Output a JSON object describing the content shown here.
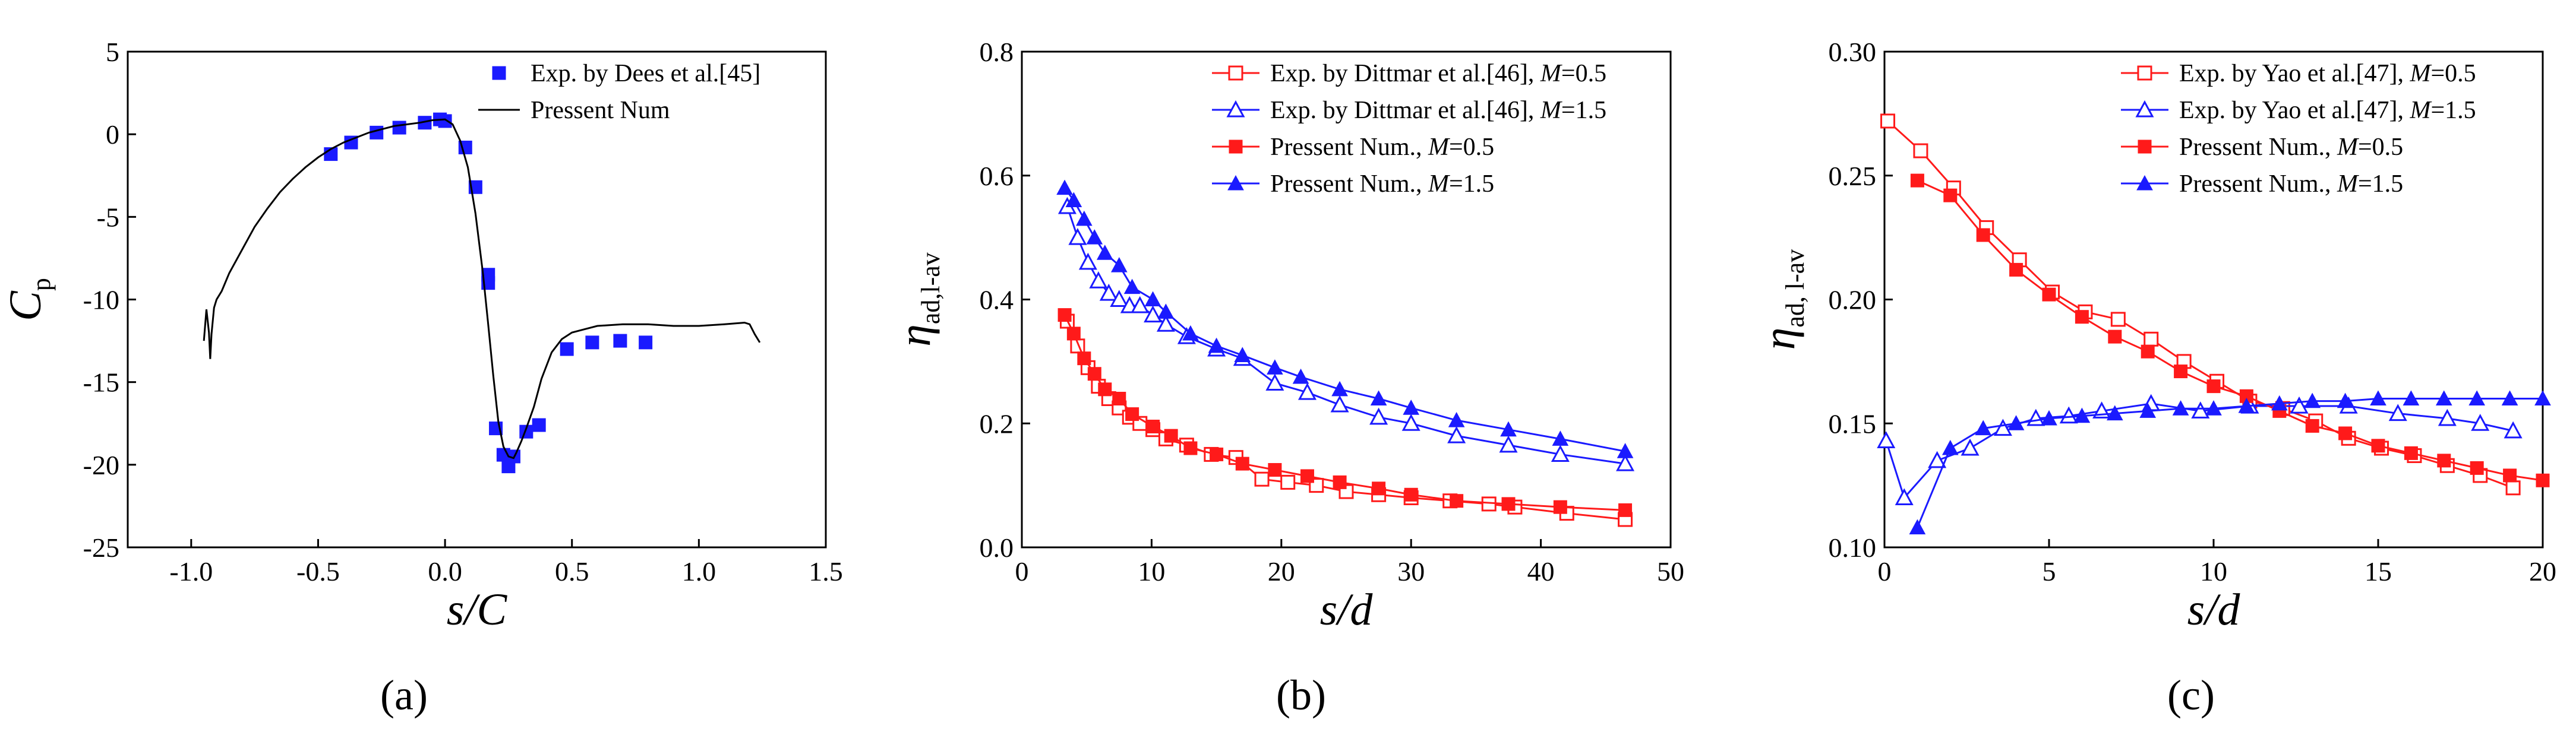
{
  "colors": {
    "blue": "#1a1aff",
    "red": "#ff1a1a",
    "black": "#000000"
  },
  "chart_data": [
    {
      "type": "scatter",
      "panel_label": "(a)",
      "xlabel": "s/C",
      "ylabel": "C_p",
      "ylabel_main": "C",
      "ylabel_sub": "p",
      "xlim": [
        -1.25,
        1.5
      ],
      "ylim": [
        -25,
        5
      ],
      "xticks": [
        -1.0,
        -0.5,
        0.0,
        0.5,
        1.0,
        1.5
      ],
      "xtick_labels": [
        "-1.0",
        "-0.5",
        "0.0",
        "0.5",
        "1.0",
        "1.5"
      ],
      "yticks": [
        5,
        0,
        -5,
        -10,
        -15,
        -20,
        -25
      ],
      "ytick_labels": [
        "5",
        "0",
        "-5",
        "-10",
        "-15",
        "-20",
        "-25"
      ],
      "legend_position": "top-right",
      "series": [
        {
          "name": "Exp. by Dees et al.[45]",
          "kind": "marker",
          "marker": "square-filled",
          "color": "#1a1aff",
          "x": [
            -0.45,
            -0.37,
            -0.27,
            -0.18,
            -0.08,
            -0.02,
            0.0,
            0.08,
            0.12,
            0.17,
            0.17,
            0.2,
            0.23,
            0.25,
            0.27,
            0.32,
            0.37,
            0.48,
            0.58,
            0.69,
            0.79
          ],
          "y": [
            -1.2,
            -0.5,
            0.1,
            0.4,
            0.7,
            0.9,
            0.8,
            -0.8,
            -3.2,
            -8.5,
            -9.0,
            -17.8,
            -19.4,
            -20.1,
            -19.5,
            -18.0,
            -17.6,
            -13.0,
            -12.6,
            -12.5,
            -12.6
          ]
        },
        {
          "name": "Pressent Num",
          "kind": "line",
          "color": "#000000",
          "x": [
            -0.95,
            -0.94,
            -0.93,
            -0.925,
            -0.92,
            -0.91,
            -0.9,
            -0.88,
            -0.85,
            -0.8,
            -0.75,
            -0.7,
            -0.65,
            -0.6,
            -0.55,
            -0.5,
            -0.45,
            -0.4,
            -0.35,
            -0.3,
            -0.25,
            -0.2,
            -0.15,
            -0.1,
            -0.05,
            0.0,
            0.03,
            0.06,
            0.09,
            0.12,
            0.15,
            0.17,
            0.19,
            0.21,
            0.23,
            0.25,
            0.27,
            0.28,
            0.3,
            0.32,
            0.35,
            0.38,
            0.42,
            0.46,
            0.5,
            0.55,
            0.6,
            0.7,
            0.8,
            0.9,
            1.0,
            1.1,
            1.18,
            1.2,
            1.22,
            1.24
          ],
          "y": [
            -12.5,
            -10.6,
            -12.0,
            -13.6,
            -12.1,
            -10.5,
            -10.0,
            -9.5,
            -8.4,
            -7.0,
            -5.6,
            -4.5,
            -3.5,
            -2.7,
            -2.0,
            -1.4,
            -0.9,
            -0.5,
            -0.2,
            0.1,
            0.3,
            0.5,
            0.6,
            0.7,
            0.85,
            0.9,
            0.6,
            -0.4,
            -2.0,
            -4.8,
            -8.5,
            -11.5,
            -14.6,
            -17.4,
            -18.9,
            -19.5,
            -19.6,
            -19.3,
            -18.6,
            -17.8,
            -16.5,
            -14.8,
            -13.2,
            -12.4,
            -12.0,
            -11.8,
            -11.6,
            -11.5,
            -11.5,
            -11.6,
            -11.6,
            -11.5,
            -11.4,
            -11.5,
            -12.1,
            -12.6
          ]
        }
      ]
    },
    {
      "type": "line",
      "panel_label": "(b)",
      "xlabel": "s/d",
      "ylabel": "η_ad,l-av",
      "ylabel_main": "η",
      "ylabel_sub": "ad,l-av",
      "xlim": [
        0,
        50
      ],
      "ylim": [
        0.0,
        0.8
      ],
      "xticks": [
        0,
        10,
        20,
        30,
        40,
        50
      ],
      "xtick_labels": [
        "0",
        "10",
        "20",
        "30",
        "40",
        "50"
      ],
      "yticks": [
        0.0,
        0.2,
        0.4,
        0.6,
        0.8
      ],
      "ytick_labels": [
        "0.0",
        "0.2",
        "0.4",
        "0.6",
        "0.8"
      ],
      "legend_position": "top-right",
      "series": [
        {
          "name": "Exp. by Dittmar et al.[46], M=0.5",
          "legend_prefix": "Exp. by Dittmar et al.[46], ",
          "legend_var": "M",
          "legend_suffix": "=0.5",
          "marker": "square-open",
          "color": "#ff1a1a",
          "x": [
            3.5,
            4.3,
            5.1,
            5.9,
            6.7,
            7.5,
            8.3,
            9.1,
            10.1,
            11.1,
            12.7,
            14.6,
            16.5,
            18.5,
            20.5,
            22.7,
            25.0,
            27.5,
            30.0,
            33.0,
            36.0,
            38.0,
            42.0,
            46.5
          ],
          "y": [
            0.365,
            0.325,
            0.29,
            0.26,
            0.24,
            0.225,
            0.21,
            0.2,
            0.19,
            0.175,
            0.165,
            0.15,
            0.145,
            0.11,
            0.105,
            0.1,
            0.09,
            0.085,
            0.08,
            0.075,
            0.07,
            0.065,
            0.055,
            0.045
          ]
        },
        {
          "name": "Exp. by Dittmar et al.[46], M=1.5",
          "legend_prefix": "Exp. by Dittmar et al.[46], ",
          "legend_var": "M",
          "legend_suffix": "=1.5",
          "marker": "triangle-open",
          "color": "#1a1aff",
          "x": [
            3.5,
            4.3,
            5.1,
            5.9,
            6.7,
            7.5,
            8.3,
            9.1,
            10.1,
            11.1,
            12.7,
            15.0,
            17.0,
            19.5,
            22.0,
            24.5,
            27.5,
            30.0,
            33.5,
            37.5,
            41.5,
            46.5
          ],
          "y": [
            0.55,
            0.5,
            0.46,
            0.43,
            0.41,
            0.4,
            0.39,
            0.39,
            0.375,
            0.36,
            0.34,
            0.32,
            0.305,
            0.265,
            0.25,
            0.23,
            0.21,
            0.2,
            0.18,
            0.165,
            0.15,
            0.135
          ]
        },
        {
          "name": "Pressent Num., M=0.5",
          "legend_prefix": "Pressent Num., ",
          "legend_var": "M",
          "legend_suffix": "=0.5",
          "marker": "square-filled",
          "color": "#ff1a1a",
          "x": [
            3.3,
            4.0,
            4.8,
            5.6,
            6.4,
            7.5,
            8.5,
            10.1,
            11.5,
            13.0,
            15.0,
            17.0,
            19.5,
            22.0,
            24.5,
            27.5,
            30.0,
            33.5,
            37.5,
            41.5,
            46.5
          ],
          "y": [
            0.375,
            0.345,
            0.305,
            0.28,
            0.255,
            0.24,
            0.215,
            0.195,
            0.18,
            0.16,
            0.15,
            0.135,
            0.125,
            0.115,
            0.105,
            0.095,
            0.085,
            0.075,
            0.07,
            0.065,
            0.06
          ]
        },
        {
          "name": "Pressent Num., M=1.5",
          "legend_prefix": "Pressent Num., ",
          "legend_var": "M",
          "legend_suffix": "=1.5",
          "marker": "triangle-filled",
          "color": "#1a1aff",
          "x": [
            3.3,
            4.0,
            4.8,
            5.6,
            6.4,
            7.5,
            8.5,
            10.1,
            11.1,
            13.0,
            15.0,
            17.0,
            19.5,
            21.5,
            24.5,
            27.5,
            30.0,
            33.5,
            37.5,
            41.5,
            46.5
          ],
          "y": [
            0.58,
            0.56,
            0.53,
            0.5,
            0.475,
            0.455,
            0.42,
            0.4,
            0.38,
            0.345,
            0.325,
            0.31,
            0.29,
            0.275,
            0.255,
            0.24,
            0.225,
            0.205,
            0.19,
            0.175,
            0.155
          ]
        }
      ]
    },
    {
      "type": "line",
      "panel_label": "(c)",
      "xlabel": "s/d",
      "ylabel": "η_ad, l-av",
      "ylabel_main": "η",
      "ylabel_sub": "ad, l-av",
      "xlim": [
        0,
        20
      ],
      "ylim": [
        0.1,
        0.3
      ],
      "xticks": [
        0,
        5,
        10,
        15,
        20
      ],
      "xtick_labels": [
        "0",
        "5",
        "10",
        "15",
        "20"
      ],
      "yticks": [
        0.1,
        0.15,
        0.2,
        0.25,
        0.3
      ],
      "ytick_labels": [
        "0.10",
        "0.15",
        "0.20",
        "0.25",
        "0.30"
      ],
      "legend_position": "top-right",
      "series": [
        {
          "name": "Exp. by Yao et al.[47], M=0.5",
          "legend_prefix": "Exp. by Yao et al.[47], ",
          "legend_var": "M",
          "legend_suffix": "=0.5",
          "marker": "square-open",
          "color": "#ff1a1a",
          "x": [
            0.1,
            1.1,
            2.1,
            3.1,
            4.1,
            5.1,
            6.1,
            7.1,
            8.1,
            9.1,
            10.1,
            11.1,
            12.1,
            13.1,
            14.1,
            15.1,
            16.1,
            17.1,
            18.1,
            19.1
          ],
          "y": [
            0.272,
            0.26,
            0.245,
            0.229,
            0.216,
            0.203,
            0.195,
            0.192,
            0.184,
            0.175,
            0.167,
            0.159,
            0.156,
            0.151,
            0.144,
            0.14,
            0.137,
            0.133,
            0.129,
            0.124
          ]
        },
        {
          "name": "Exp. by Yao et al.[47], M=1.5",
          "legend_prefix": "Exp. by Yao et al.[47], ",
          "legend_var": "M",
          "legend_suffix": "=1.5",
          "marker": "triangle-open",
          "color": "#1a1aff",
          "x": [
            0.05,
            0.6,
            1.6,
            2.6,
            3.6,
            4.6,
            5.6,
            6.6,
            8.1,
            9.6,
            11.1,
            12.6,
            14.1,
            15.6,
            17.1,
            18.1,
            19.1
          ],
          "y": [
            0.143,
            0.12,
            0.135,
            0.14,
            0.148,
            0.152,
            0.153,
            0.155,
            0.158,
            0.155,
            0.157,
            0.157,
            0.157,
            0.154,
            0.152,
            0.15,
            0.147
          ]
        },
        {
          "name": "Pressent Num., M=0.5",
          "legend_prefix": "Pressent Num., ",
          "legend_var": "M",
          "legend_suffix": "=0.5",
          "marker": "square-filled",
          "color": "#ff1a1a",
          "x": [
            1.0,
            2.0,
            3.0,
            4.0,
            5.0,
            6.0,
            7.0,
            8.0,
            9.0,
            10.0,
            11.0,
            12.0,
            13.0,
            14.0,
            15.0,
            16.0,
            17.0,
            18.0,
            19.0,
            20.0
          ],
          "y": [
            0.248,
            0.242,
            0.226,
            0.212,
            0.202,
            0.193,
            0.185,
            0.179,
            0.171,
            0.165,
            0.161,
            0.155,
            0.149,
            0.146,
            0.141,
            0.138,
            0.135,
            0.132,
            0.129,
            0.127
          ]
        },
        {
          "name": "Pressent Num., M=1.5",
          "legend_prefix": "Pressent Num., ",
          "legend_var": "M",
          "legend_suffix": "=1.5",
          "marker": "triangle-filled",
          "color": "#1a1aff",
          "x": [
            1.0,
            2.0,
            3.0,
            4.0,
            5.0,
            6.0,
            7.0,
            8.0,
            9.0,
            10.0,
            11.0,
            12.0,
            13.0,
            14.0,
            15.0,
            16.0,
            17.0,
            18.0,
            19.0,
            20.0
          ],
          "y": [
            0.108,
            0.14,
            0.148,
            0.15,
            0.152,
            0.153,
            0.154,
            0.155,
            0.156,
            0.156,
            0.157,
            0.158,
            0.159,
            0.159,
            0.16,
            0.16,
            0.16,
            0.16,
            0.16,
            0.16
          ]
        }
      ]
    }
  ]
}
